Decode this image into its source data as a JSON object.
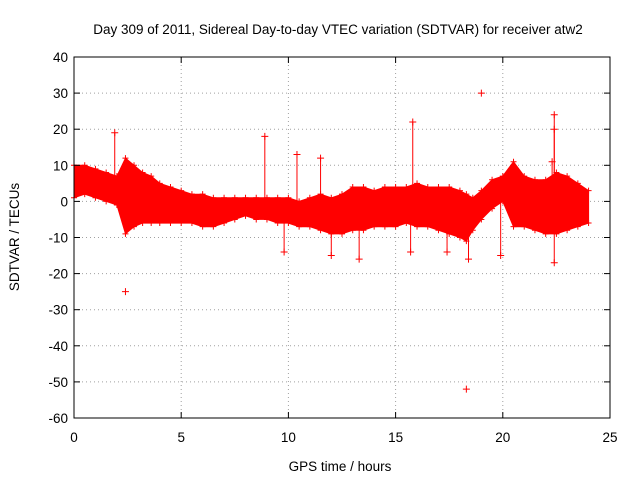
{
  "chart_data": {
    "type": "scatter",
    "title": "Day 309 of 2011, Sidereal Day-to-day VTEC variation (SDTVAR) for receiver atw2",
    "xlabel": "GPS time / hours",
    "ylabel": "SDTVAR / TECUs",
    "xlim": [
      0,
      25
    ],
    "ylim": [
      -60,
      40
    ],
    "x_ticks": [
      0,
      5,
      10,
      15,
      20,
      25
    ],
    "y_ticks": [
      -60,
      -50,
      -40,
      -30,
      -20,
      -10,
      0,
      10,
      20,
      30,
      40
    ],
    "x_tick_labels": [
      "0",
      "5",
      "10",
      "15",
      "20",
      "25"
    ],
    "y_tick_labels": [
      "-60",
      "-50",
      "-40",
      "-30",
      "-20",
      "-10",
      "0",
      "10",
      "20",
      "30",
      "40"
    ],
    "grid": true,
    "series_color": "#ff0000",
    "band": {
      "x": [
        0.0,
        0.5,
        1.0,
        1.5,
        2.0,
        2.4,
        2.8,
        3.2,
        3.6,
        4.0,
        4.5,
        5.0,
        5.5,
        6.0,
        6.5,
        7.0,
        7.5,
        8.0,
        8.5,
        9.0,
        9.5,
        10.0,
        10.5,
        11.0,
        11.5,
        12.0,
        12.5,
        13.0,
        13.5,
        14.0,
        14.5,
        15.0,
        15.5,
        16.0,
        16.5,
        17.0,
        17.5,
        18.0,
        18.3,
        18.6,
        19.0,
        19.5,
        20.0,
        20.5,
        21.0,
        21.5,
        22.0,
        22.5,
        23.0,
        23.5,
        24.0
      ],
      "upper": [
        10,
        10,
        9,
        8,
        7,
        12,
        10,
        8,
        7,
        5,
        4,
        3,
        2,
        2,
        1,
        1,
        1,
        1,
        1,
        1,
        1,
        1,
        0,
        1,
        2,
        1,
        2,
        4,
        4,
        3,
        4,
        4,
        4,
        5,
        4,
        4,
        4,
        3,
        2,
        1,
        3,
        6,
        7,
        11,
        7,
        6,
        6,
        8,
        7,
        5,
        3
      ],
      "lower": [
        1,
        2,
        1,
        0,
        -1,
        -9,
        -7,
        -6,
        -6,
        -6,
        -6,
        -6,
        -6,
        -7,
        -7,
        -6,
        -5,
        -4,
        -5,
        -5,
        -6,
        -6,
        -7,
        -7,
        -8,
        -9,
        -9,
        -8,
        -8,
        -7,
        -7,
        -7,
        -6,
        -7,
        -7,
        -8,
        -9,
        -10,
        -11,
        -8,
        -5,
        -2,
        0,
        -7,
        -7,
        -8,
        -9,
        -9,
        -8,
        -7,
        -6
      ]
    },
    "outliers": [
      {
        "x": 2.4,
        "y": -25
      },
      {
        "x": 8.9,
        "y": 18
      },
      {
        "x": 15.8,
        "y": 22
      },
      {
        "x": 18.3,
        "y": -52
      },
      {
        "x": 18.4,
        "y": -16
      },
      {
        "x": 19.0,
        "y": 30
      },
      {
        "x": 22.4,
        "y": 24
      },
      {
        "x": 22.4,
        "y": 20
      },
      {
        "x": 22.4,
        "y": -17
      },
      {
        "x": 22.3,
        "y": 11
      },
      {
        "x": 1.9,
        "y": 19
      },
      {
        "x": 9.8,
        "y": -14
      },
      {
        "x": 12.0,
        "y": -15
      },
      {
        "x": 13.3,
        "y": -16
      },
      {
        "x": 15.7,
        "y": -14
      },
      {
        "x": 17.4,
        "y": -14
      },
      {
        "x": 19.9,
        "y": -15
      },
      {
        "x": 11.5,
        "y": 12
      },
      {
        "x": 10.4,
        "y": 13
      }
    ]
  }
}
